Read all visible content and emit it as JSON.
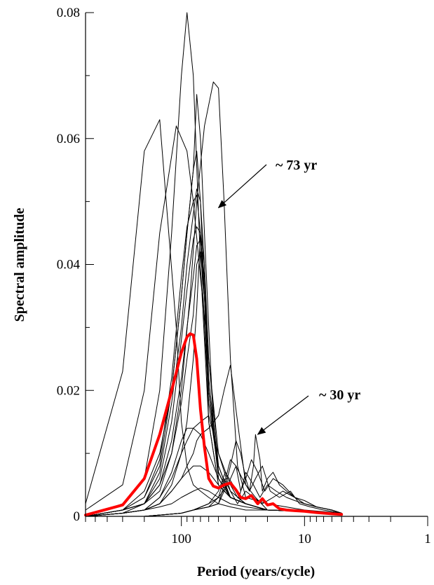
{
  "chart_data": {
    "type": "line",
    "title": "",
    "xlabel": "Period (years/cycle)",
    "ylabel": "Spectral amplitude",
    "x_scale": "log",
    "x_reversed": true,
    "xlim": [
      600,
      1
    ],
    "ylim": [
      0,
      0.08
    ],
    "x_tick_labels": [
      {
        "value": 100,
        "label": "100"
      },
      {
        "value": 10,
        "label": "10"
      },
      {
        "value": 1,
        "label": "1"
      }
    ],
    "y_tick_labels": [
      {
        "value": 0,
        "label": "0"
      },
      {
        "value": 0.02,
        "label": "0.02"
      },
      {
        "value": 0.04,
        "label": "0.04"
      },
      {
        "value": 0.06,
        "label": "0.06"
      },
      {
        "value": 0.08,
        "label": "0.08"
      }
    ],
    "grid": false,
    "annotations": [
      {
        "text": "~ 73 yr",
        "arrow_to": {
          "x": 50,
          "y": 0.049
        }
      },
      {
        "text": "~ 30 yr",
        "arrow_to": {
          "x": 24,
          "y": 0.013
        }
      }
    ],
    "series": [
      {
        "color": "#000000",
        "width": 1,
        "x": [
          600,
          300,
          200,
          150,
          110,
          90,
          80,
          70,
          60,
          50,
          40,
          30,
          20,
          10,
          5
        ],
        "y": [
          0.001,
          0.005,
          0.02,
          0.045,
          0.062,
          0.058,
          0.05,
          0.038,
          0.025,
          0.01,
          0.004,
          0.002,
          0.001,
          0.0008,
          0.0005
        ]
      },
      {
        "color": "#000000",
        "width": 1,
        "x": [
          600,
          300,
          200,
          150,
          110,
          100,
          90,
          80,
          70,
          60,
          50,
          40,
          30,
          20,
          10,
          5
        ],
        "y": [
          0.002,
          0.023,
          0.058,
          0.063,
          0.03,
          0.015,
          0.008,
          0.005,
          0.004,
          0.003,
          0.002,
          0.0015,
          0.001,
          0.001,
          0.0008,
          0.0005
        ]
      },
      {
        "color": "#000000",
        "width": 1,
        "x": [
          600,
          300,
          200,
          150,
          120,
          100,
          90,
          80,
          70,
          60,
          50,
          40,
          30,
          20,
          10,
          5
        ],
        "y": [
          0.0,
          0.002,
          0.006,
          0.02,
          0.045,
          0.07,
          0.08,
          0.07,
          0.04,
          0.015,
          0.005,
          0.003,
          0.002,
          0.001,
          0.0008,
          0.0005
        ]
      },
      {
        "color": "#000000",
        "width": 1,
        "x": [
          600,
          300,
          200,
          150,
          120,
          100,
          85,
          75,
          65,
          55,
          50,
          45,
          40,
          35,
          30,
          20,
          10,
          5
        ],
        "y": [
          0.0,
          0.0005,
          0.002,
          0.005,
          0.01,
          0.02,
          0.035,
          0.05,
          0.062,
          0.069,
          0.068,
          0.05,
          0.025,
          0.008,
          0.003,
          0.002,
          0.001,
          0.0005
        ]
      },
      {
        "color": "#000000",
        "width": 1,
        "x": [
          600,
          300,
          200,
          150,
          120,
          100,
          90,
          80,
          75,
          70,
          65,
          60,
          55,
          50,
          40,
          30,
          20,
          10,
          5
        ],
        "y": [
          0.0,
          0.001,
          0.004,
          0.01,
          0.02,
          0.035,
          0.045,
          0.055,
          0.067,
          0.06,
          0.045,
          0.03,
          0.015,
          0.006,
          0.003,
          0.002,
          0.001,
          0.0008,
          0.0005
        ]
      },
      {
        "color": "#000000",
        "width": 1,
        "x": [
          600,
          300,
          200,
          150,
          120,
          100,
          90,
          80,
          75,
          70,
          65,
          60,
          50,
          40,
          30,
          20,
          10,
          5
        ],
        "y": [
          0.0,
          0.001,
          0.003,
          0.008,
          0.02,
          0.035,
          0.045,
          0.055,
          0.058,
          0.05,
          0.035,
          0.02,
          0.008,
          0.003,
          0.002,
          0.001,
          0.0008,
          0.0005
        ]
      },
      {
        "color": "#000000",
        "width": 1,
        "x": [
          600,
          300,
          200,
          150,
          120,
          100,
          90,
          80,
          75,
          70,
          65,
          60,
          50,
          40,
          30,
          20,
          10,
          5
        ],
        "y": [
          0.0,
          0.001,
          0.003,
          0.009,
          0.022,
          0.038,
          0.046,
          0.05,
          0.051,
          0.045,
          0.03,
          0.018,
          0.007,
          0.003,
          0.002,
          0.001,
          0.0008,
          0.0005
        ]
      },
      {
        "color": "#000000",
        "width": 1,
        "x": [
          600,
          300,
          200,
          150,
          120,
          100,
          90,
          80,
          75,
          70,
          65,
          60,
          50,
          40,
          30,
          20,
          10,
          5
        ],
        "y": [
          0.0,
          0.001,
          0.002,
          0.007,
          0.018,
          0.03,
          0.04,
          0.048,
          0.052,
          0.05,
          0.04,
          0.02,
          0.007,
          0.003,
          0.002,
          0.001,
          0.0008,
          0.0005
        ]
      },
      {
        "color": "#000000",
        "width": 1,
        "x": [
          600,
          300,
          200,
          150,
          120,
          100,
          90,
          80,
          75,
          70,
          65,
          60,
          50,
          40,
          30,
          20,
          10,
          5
        ],
        "y": [
          0.0,
          0.001,
          0.002,
          0.006,
          0.015,
          0.028,
          0.036,
          0.044,
          0.046,
          0.045,
          0.04,
          0.025,
          0.008,
          0.003,
          0.002,
          0.001,
          0.0008,
          0.0005
        ]
      },
      {
        "color": "#000000",
        "width": 1,
        "x": [
          600,
          300,
          200,
          150,
          120,
          100,
          90,
          80,
          75,
          70,
          65,
          60,
          50,
          40,
          30,
          20,
          10,
          5
        ],
        "y": [
          0.0,
          0.001,
          0.002,
          0.005,
          0.012,
          0.022,
          0.03,
          0.038,
          0.043,
          0.044,
          0.038,
          0.022,
          0.007,
          0.003,
          0.002,
          0.001,
          0.0008,
          0.0005
        ]
      },
      {
        "color": "#000000",
        "width": 1,
        "x": [
          600,
          300,
          200,
          150,
          120,
          100,
          90,
          80,
          75,
          70,
          65,
          60,
          50,
          40,
          30,
          20,
          10,
          5
        ],
        "y": [
          0.0,
          0.001,
          0.002,
          0.004,
          0.01,
          0.018,
          0.025,
          0.032,
          0.04,
          0.042,
          0.035,
          0.02,
          0.006,
          0.003,
          0.002,
          0.001,
          0.0008,
          0.0005
        ]
      },
      {
        "color": "#000000",
        "width": 1,
        "x": [
          600,
          300,
          200,
          150,
          120,
          100,
          90,
          80,
          75,
          70,
          65,
          60,
          50,
          40,
          30,
          20,
          10,
          5
        ],
        "y": [
          0.0,
          0.0005,
          0.001,
          0.003,
          0.006,
          0.01,
          0.015,
          0.025,
          0.033,
          0.045,
          0.035,
          0.015,
          0.005,
          0.003,
          0.002,
          0.001,
          0.0008,
          0.0005
        ]
      },
      {
        "color": "#000000",
        "width": 1,
        "x": [
          600,
          300,
          200,
          150,
          120,
          100,
          90,
          80,
          75,
          70,
          60,
          50,
          45,
          40,
          35,
          30,
          25,
          20,
          10,
          5
        ],
        "y": [
          0.0,
          0.0005,
          0.001,
          0.002,
          0.004,
          0.006,
          0.008,
          0.01,
          0.012,
          0.013,
          0.014,
          0.016,
          0.02,
          0.024,
          0.015,
          0.005,
          0.003,
          0.001,
          0.0008,
          0.0005
        ]
      },
      {
        "color": "#000000",
        "width": 1,
        "x": [
          600,
          300,
          200,
          150,
          120,
          100,
          90,
          80,
          70,
          60,
          50,
          40,
          35,
          30,
          20,
          10,
          5
        ],
        "y": [
          0.0,
          0.0005,
          0.001,
          0.002,
          0.005,
          0.01,
          0.012,
          0.014,
          0.015,
          0.016,
          0.01,
          0.005,
          0.003,
          0.002,
          0.001,
          0.0008,
          0.0005
        ]
      },
      {
        "color": "#000000",
        "width": 1,
        "x": [
          600,
          300,
          200,
          150,
          120,
          100,
          90,
          80,
          70,
          60,
          50,
          40,
          30,
          20,
          10,
          5
        ],
        "y": [
          0.0,
          0.0005,
          0.001,
          0.003,
          0.007,
          0.012,
          0.014,
          0.014,
          0.013,
          0.01,
          0.006,
          0.003,
          0.002,
          0.001,
          0.0008,
          0.0005
        ]
      },
      {
        "color": "#000000",
        "width": 1,
        "x": [
          600,
          300,
          200,
          150,
          120,
          100,
          90,
          80,
          70,
          60,
          50,
          40,
          30,
          20,
          10,
          5
        ],
        "y": [
          0.0,
          0.0005,
          0.001,
          0.002,
          0.004,
          0.006,
          0.007,
          0.008,
          0.008,
          0.007,
          0.005,
          0.003,
          0.002,
          0.001,
          0.0008,
          0.0005
        ]
      },
      {
        "color": "#000000",
        "width": 1,
        "x": [
          600,
          300,
          200,
          150,
          120,
          100,
          80,
          70,
          60,
          50,
          40,
          30,
          20,
          10,
          5
        ],
        "y": [
          0.0,
          0.0005,
          0.001,
          0.0015,
          0.002,
          0.003,
          0.004,
          0.0045,
          0.004,
          0.003,
          0.002,
          0.0015,
          0.001,
          0.0008,
          0.0005
        ]
      },
      {
        "color": "#000000",
        "width": 1,
        "x": [
          600,
          200,
          100,
          80,
          60,
          50,
          45,
          40,
          36,
          33,
          30,
          28,
          26,
          25,
          23,
          22,
          20,
          18,
          16,
          14,
          12,
          10,
          8,
          6,
          5
        ],
        "y": [
          0.0,
          0.0,
          0.0005,
          0.001,
          0.0015,
          0.002,
          0.004,
          0.008,
          0.012,
          0.01,
          0.006,
          0.004,
          0.008,
          0.013,
          0.009,
          0.004,
          0.006,
          0.007,
          0.005,
          0.004,
          0.003,
          0.0025,
          0.0015,
          0.001,
          0.0005
        ]
      },
      {
        "color": "#000000",
        "width": 1,
        "x": [
          600,
          200,
          100,
          80,
          60,
          50,
          45,
          40,
          36,
          33,
          30,
          27,
          24,
          21,
          18,
          15,
          12,
          10,
          8,
          6,
          5
        ],
        "y": [
          0.0,
          0.0,
          0.0005,
          0.001,
          0.0015,
          0.002,
          0.005,
          0.009,
          0.008,
          0.004,
          0.006,
          0.009,
          0.007,
          0.004,
          0.006,
          0.005,
          0.003,
          0.002,
          0.0015,
          0.001,
          0.0005
        ]
      },
      {
        "color": "#000000",
        "width": 1,
        "x": [
          600,
          200,
          100,
          80,
          60,
          50,
          44,
          38,
          34,
          30,
          26,
          23,
          20,
          17,
          14,
          12,
          10,
          8,
          6,
          5
        ],
        "y": [
          0.0,
          0.0,
          0.0005,
          0.001,
          0.002,
          0.004,
          0.007,
          0.005,
          0.003,
          0.007,
          0.005,
          0.003,
          0.005,
          0.004,
          0.003,
          0.0025,
          0.002,
          0.0015,
          0.001,
          0.0005
        ]
      },
      {
        "color": "#000000",
        "width": 1,
        "x": [
          600,
          200,
          100,
          80,
          60,
          50,
          42,
          36,
          32,
          28,
          25,
          22,
          19,
          16,
          13,
          11,
          9,
          7,
          5
        ],
        "y": [
          0.0,
          0.0,
          0.0005,
          0.001,
          0.002,
          0.003,
          0.005,
          0.008,
          0.006,
          0.004,
          0.006,
          0.008,
          0.004,
          0.003,
          0.004,
          0.002,
          0.0015,
          0.001,
          0.0005
        ]
      },
      {
        "color": "#000000",
        "width": 1,
        "x": [
          600,
          200,
          100,
          80,
          60,
          50,
          45,
          40,
          35,
          30,
          26,
          22,
          18,
          15,
          12,
          10,
          8,
          6,
          5
        ],
        "y": [
          0.0,
          0.0,
          0.0005,
          0.001,
          0.0015,
          0.003,
          0.006,
          0.004,
          0.002,
          0.004,
          0.003,
          0.002,
          0.003,
          0.004,
          0.003,
          0.002,
          0.0015,
          0.001,
          0.0005
        ]
      },
      {
        "color": "#ff0000",
        "width": 4,
        "x": [
          600,
          300,
          200,
          150,
          120,
          100,
          90,
          85,
          80,
          75,
          70,
          65,
          60,
          55,
          50,
          45,
          40,
          36,
          33,
          30,
          27,
          24,
          22,
          20,
          18,
          16,
          14,
          12,
          10,
          8,
          6,
          5
        ],
        "y": [
          0.0002,
          0.0018,
          0.006,
          0.013,
          0.02,
          0.026,
          0.0285,
          0.029,
          0.0288,
          0.025,
          0.017,
          0.011,
          0.006,
          0.0048,
          0.0045,
          0.005,
          0.0053,
          0.0042,
          0.003,
          0.0028,
          0.0033,
          0.002,
          0.0028,
          0.0018,
          0.002,
          0.0012,
          0.001,
          0.0009,
          0.0008,
          0.0006,
          0.0004,
          0.0003
        ]
      }
    ]
  }
}
